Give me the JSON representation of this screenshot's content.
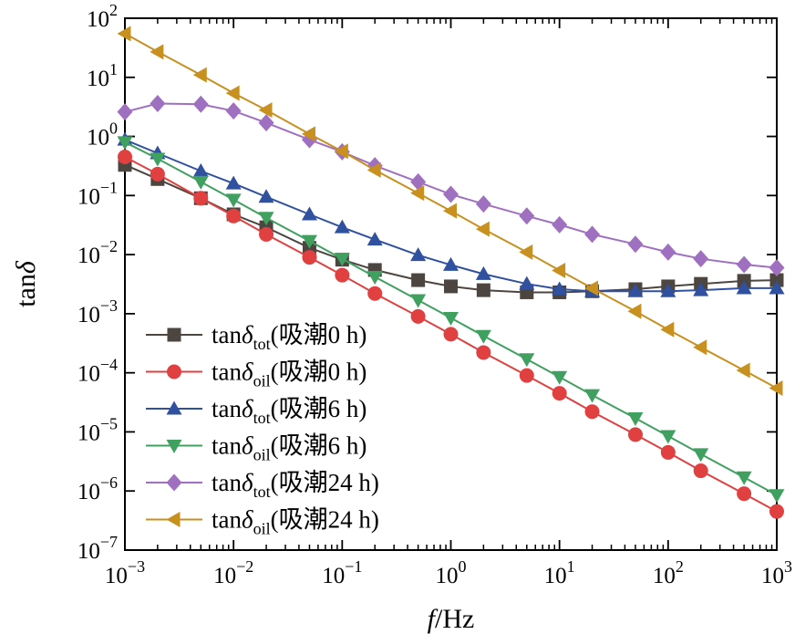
{
  "chart_data": {
    "type": "line",
    "xlabel": {
      "italic": "f",
      "rest": "/Hz"
    },
    "ylabel": {
      "regular": "tan",
      "italic": "δ"
    },
    "x_scale": "log",
    "y_scale": "log",
    "xlim": [
      0.001,
      1000
    ],
    "ylim": [
      1e-07,
      100
    ],
    "x_ticks": [
      {
        "value": 0.001,
        "base": "10",
        "exp": "−3"
      },
      {
        "value": 0.01,
        "base": "10",
        "exp": "−2"
      },
      {
        "value": 0.1,
        "base": "10",
        "exp": "−1"
      },
      {
        "value": 1,
        "base": "10",
        "exp": "0"
      },
      {
        "value": 10,
        "base": "10",
        "exp": "1"
      },
      {
        "value": 100,
        "base": "10",
        "exp": "2"
      },
      {
        "value": 1000,
        "base": "10",
        "exp": "3"
      }
    ],
    "y_ticks": [
      {
        "value": 1e-07,
        "base": "10",
        "exp": "−7"
      },
      {
        "value": 1e-06,
        "base": "10",
        "exp": "−6"
      },
      {
        "value": 1e-05,
        "base": "10",
        "exp": "−5"
      },
      {
        "value": 0.0001,
        "base": "10",
        "exp": "−4"
      },
      {
        "value": 0.001,
        "base": "10",
        "exp": "−3"
      },
      {
        "value": 0.01,
        "base": "10",
        "exp": "−2"
      },
      {
        "value": 0.1,
        "base": "10",
        "exp": "−1"
      },
      {
        "value": 1,
        "base": "10",
        "exp": "0"
      },
      {
        "value": 10,
        "base": "10",
        "exp": "1"
      },
      {
        "value": 100,
        "base": "10",
        "exp": "2"
      }
    ],
    "grid": false,
    "legend_position": "bottom-left",
    "x": [
      0.001,
      0.002,
      0.005,
      0.01,
      0.02,
      0.05,
      0.1,
      0.2,
      0.5,
      1,
      2,
      5,
      10,
      20,
      50,
      100,
      200,
      500,
      1000
    ],
    "series": [
      {
        "label_main": "tan",
        "label_italic": "δ",
        "label_sub": "tot",
        "label_tail": "(吸潮0 h)",
        "color": "#4d4540",
        "marker": "square",
        "values": [
          0.33,
          0.19,
          0.09,
          0.048,
          0.029,
          0.013,
          0.0082,
          0.0055,
          0.0037,
          0.0029,
          0.0025,
          0.0023,
          0.0023,
          0.0024,
          0.0026,
          0.0029,
          0.0032,
          0.0036,
          0.0037
        ]
      },
      {
        "label_main": "tan",
        "label_italic": "δ",
        "label_sub": "oil",
        "label_tail": "(吸潮0 h)",
        "color": "#e04040",
        "marker": "circle",
        "values": [
          0.45,
          0.23,
          0.09,
          0.045,
          0.022,
          0.009,
          0.0045,
          0.0022,
          0.0009,
          0.00045,
          0.00022,
          9e-05,
          4.5e-05,
          2.2e-05,
          9e-06,
          4.5e-06,
          2.2e-06,
          9e-07,
          4.5e-07
        ]
      },
      {
        "label_main": "tan",
        "label_italic": "δ",
        "label_sub": "tot",
        "label_tail": "(吸潮6 h)",
        "color": "#3050a0",
        "marker": "triangle-up",
        "values": [
          0.88,
          0.52,
          0.26,
          0.16,
          0.095,
          0.048,
          0.029,
          0.018,
          0.0098,
          0.0067,
          0.0047,
          0.0032,
          0.0026,
          0.0024,
          0.0024,
          0.0024,
          0.0025,
          0.0027,
          0.0027
        ]
      },
      {
        "label_main": "tan",
        "label_italic": "δ",
        "label_sub": "oil",
        "label_tail": "(吸潮6 h)",
        "color": "#40a060",
        "marker": "triangle-down",
        "values": [
          0.8,
          0.42,
          0.17,
          0.085,
          0.042,
          0.017,
          0.0085,
          0.0042,
          0.0017,
          0.00085,
          0.00042,
          0.00017,
          8.5e-05,
          4.2e-05,
          1.7e-05,
          8.5e-06,
          4.2e-06,
          1.7e-06,
          8.5e-07
        ]
      },
      {
        "label_main": "tan",
        "label_italic": "δ",
        "label_sub": "tot",
        "label_tail": "(吸潮24 h)",
        "color": "#a070c0",
        "marker": "diamond",
        "values": [
          2.6,
          3.6,
          3.5,
          2.7,
          1.7,
          0.88,
          0.55,
          0.32,
          0.17,
          0.105,
          0.072,
          0.045,
          0.032,
          0.022,
          0.015,
          0.011,
          0.0085,
          0.0068,
          0.006
        ]
      },
      {
        "label_main": "tan",
        "label_italic": "δ",
        "label_sub": "oil",
        "label_tail": "(吸潮24 h)",
        "color": "#c8901e",
        "marker": "triangle-left",
        "values": [
          55,
          27,
          11,
          5.4,
          2.8,
          1.1,
          0.56,
          0.27,
          0.11,
          0.055,
          0.027,
          0.011,
          0.0054,
          0.0027,
          0.0011,
          0.00054,
          0.00027,
          0.00011,
          5.5e-05
        ]
      }
    ]
  }
}
